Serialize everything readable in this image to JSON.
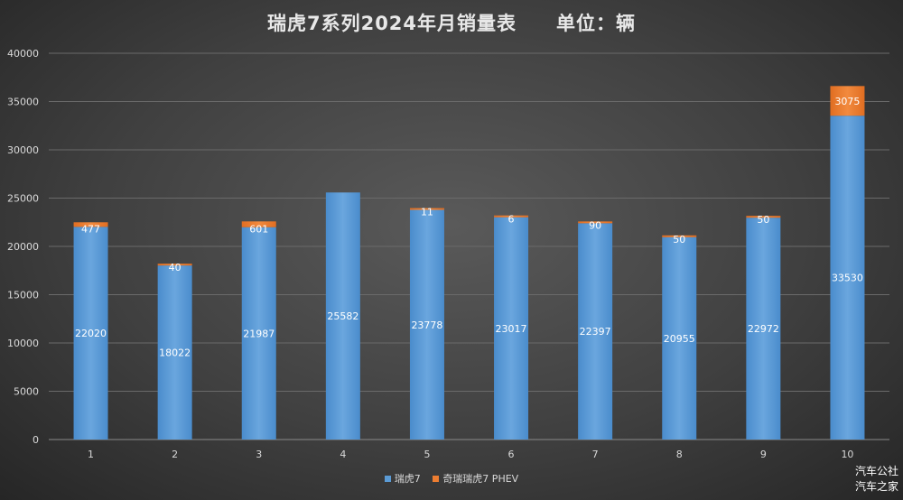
{
  "title": {
    "main": "瑞虎7系列2024年月销量表",
    "unit": "单位：辆"
  },
  "watermark": [
    "汽车公社",
    "汽车之家"
  ],
  "chart_data": {
    "type": "bar",
    "stacked": true,
    "categories": [
      "1",
      "2",
      "3",
      "4",
      "5",
      "6",
      "7",
      "8",
      "9",
      "10"
    ],
    "series": [
      {
        "name": "瑞虎7",
        "color": "#5b9bd5",
        "values": [
          22020,
          18022,
          21987,
          25582,
          23778,
          23017,
          22397,
          20955,
          22972,
          33530
        ]
      },
      {
        "name": "奇瑞瑞虎7 PHEV",
        "color": "#ed7d31",
        "values": [
          477,
          40,
          601,
          null,
          11,
          6,
          90,
          50,
          50,
          3075
        ]
      }
    ],
    "ylim": [
      0,
      40000
    ],
    "yticks": [
      0,
      5000,
      10000,
      15000,
      20000,
      25000,
      30000,
      35000,
      40000
    ],
    "grid": true,
    "legend_position": "bottom"
  }
}
